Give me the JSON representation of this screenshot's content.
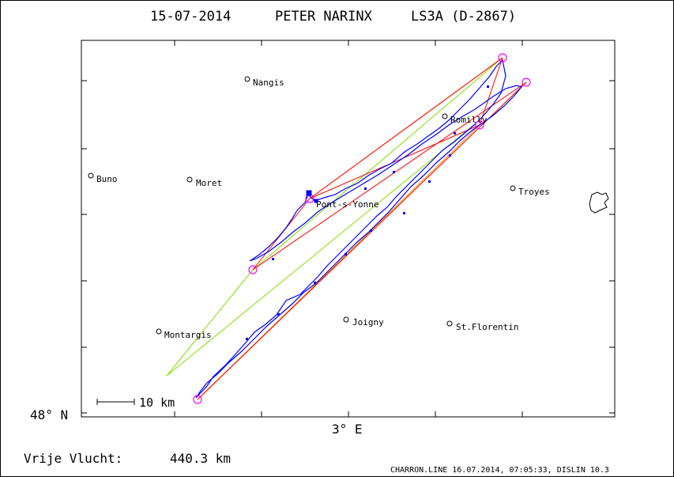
{
  "title": {
    "date": "15-07-2014",
    "pilot": "PETER NARINX",
    "glider": "LS3A (D-2867)"
  },
  "axes": {
    "y_label": "48° N",
    "x_label": "3° E"
  },
  "scale_bar": {
    "label": "10 km",
    "km": 10
  },
  "towns": [
    {
      "name": "Nangis"
    },
    {
      "name": "Buno"
    },
    {
      "name": "Moret"
    },
    {
      "name": "Romilly"
    },
    {
      "name": "Pont-s-Yonne"
    },
    {
      "name": "Troyes"
    },
    {
      "name": "Montargis"
    },
    {
      "name": "Joigny"
    },
    {
      "name": "St.Florentin"
    }
  ],
  "flight": {
    "label": "Vrije Vlucht:",
    "distance": "440.3 km"
  },
  "footer": {
    "info": "CHARRON.LINE 16.07.2014, 07:05:33, DISLIN 10.3"
  },
  "colors": {
    "track": "#0000ff",
    "task_red": "#ff0000",
    "task_orange": "#ff8c00",
    "task_green": "#80e000",
    "turnpoint": "#ff00ff",
    "frame": "#000000"
  },
  "turnpoints": 6
}
